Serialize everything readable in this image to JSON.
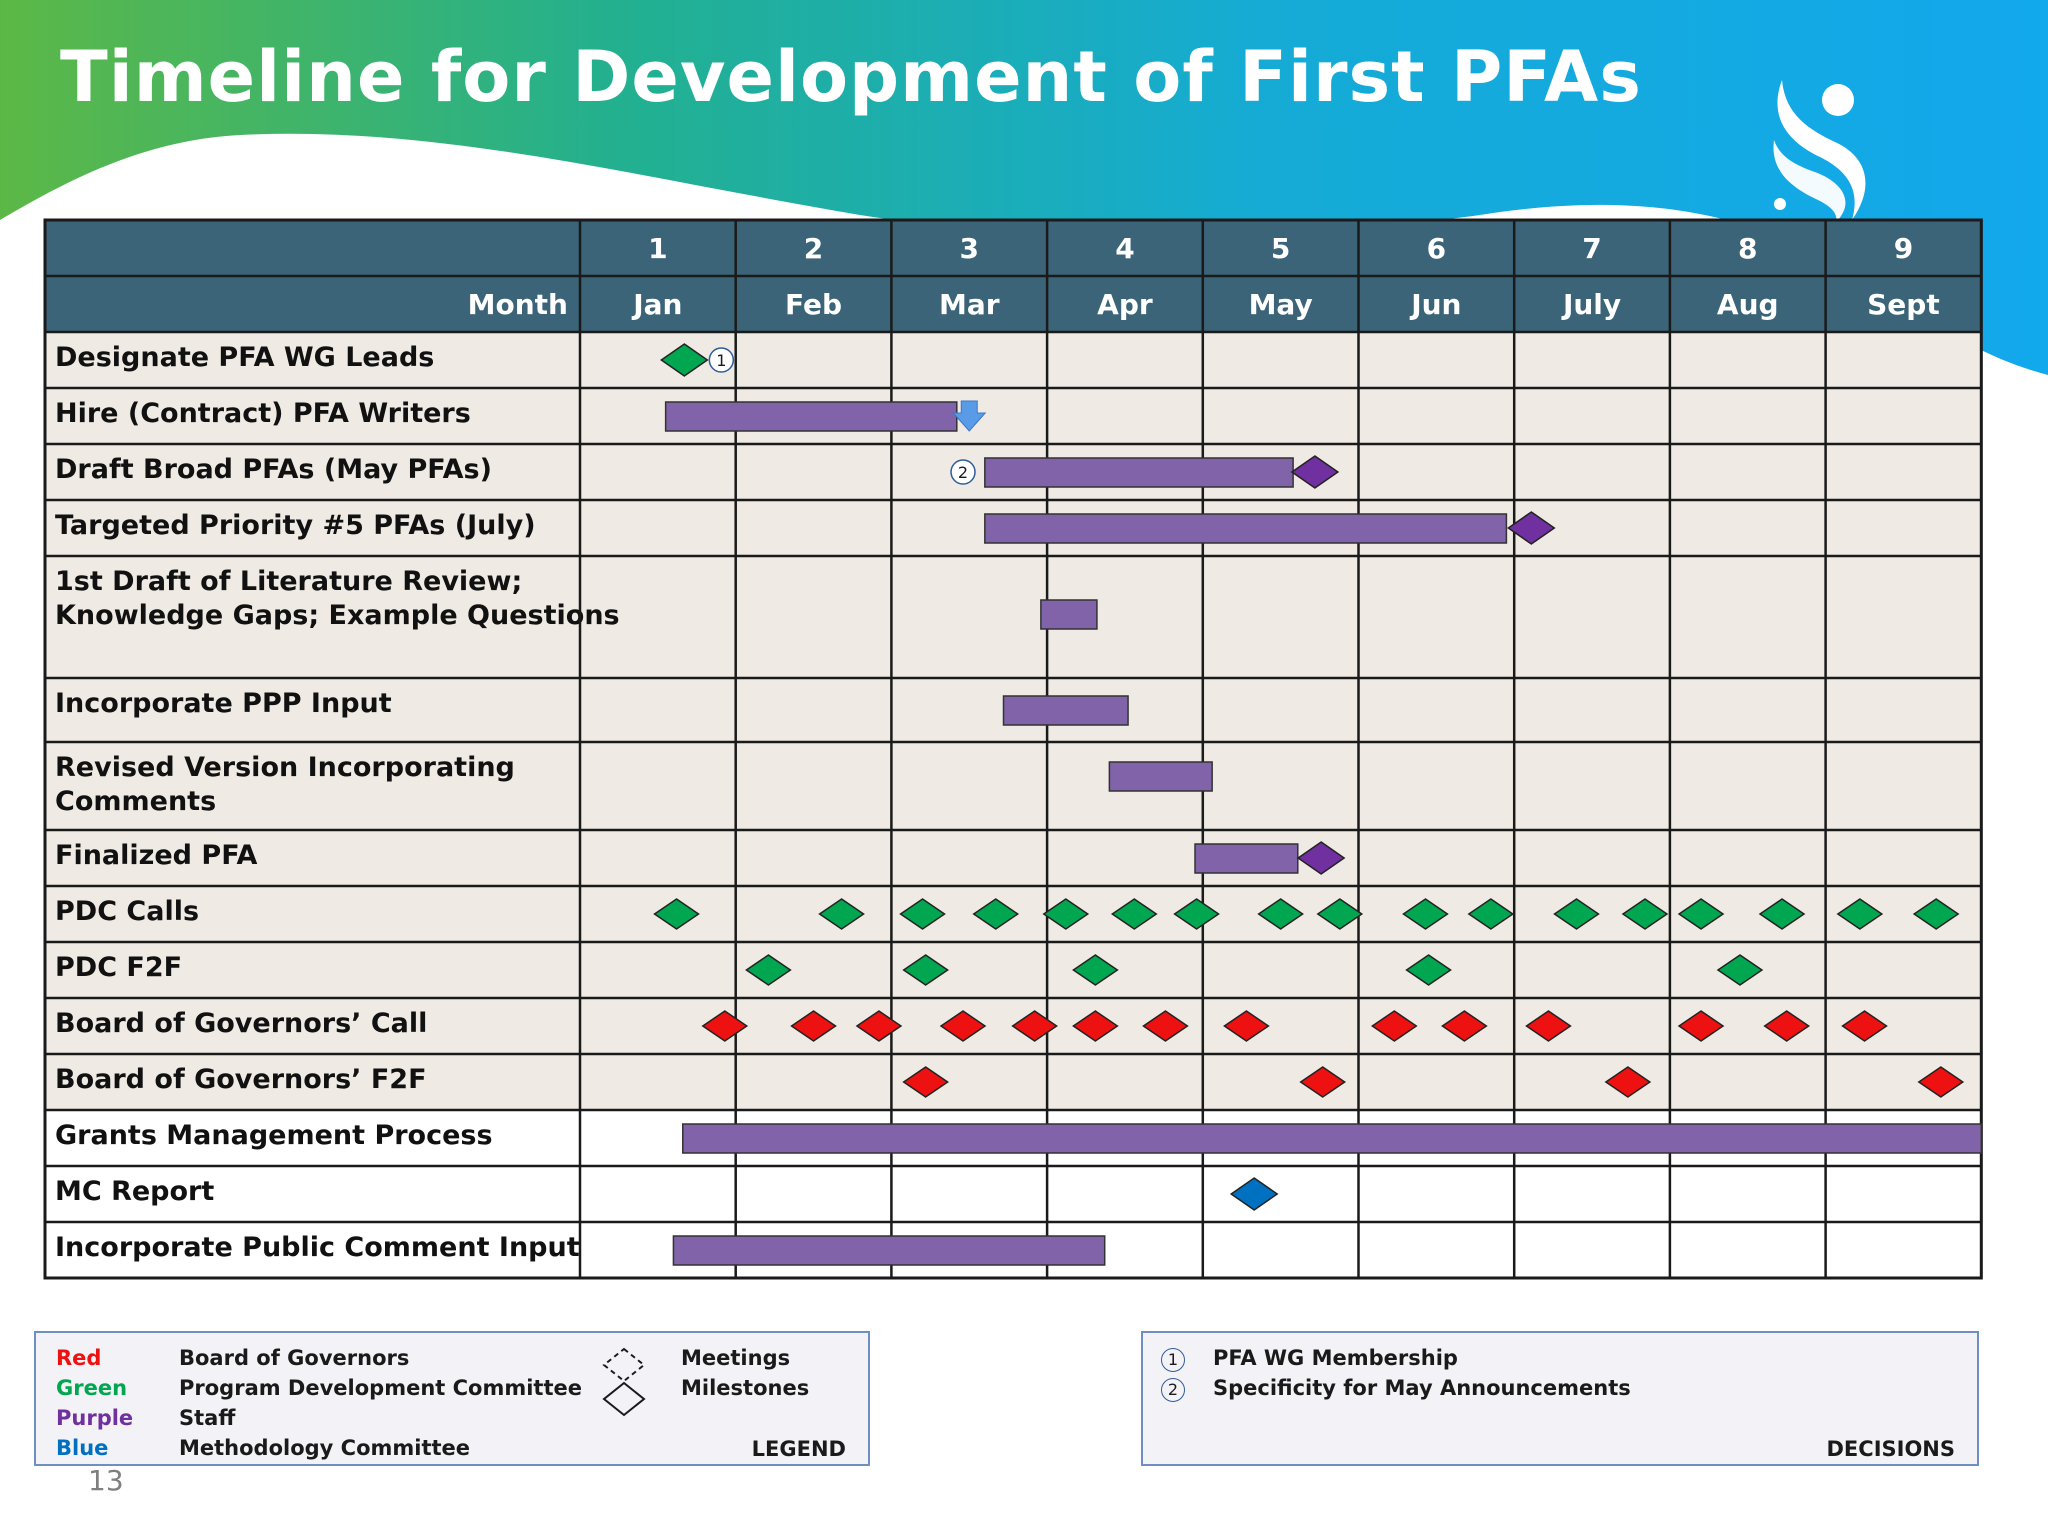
{
  "title": "Timeline for Development of First PFAs",
  "page_number": "13",
  "colors": {
    "header_bg": "#3b6478",
    "row_bg": "#efebe4",
    "bar_purple": "#8063a8",
    "milestone_purple": "#7030a0",
    "green": "#00a650",
    "red": "#ee1111",
    "blue": "#0070c0"
  },
  "chart_data": {
    "type": "gantt",
    "month_numbers": [
      "1",
      "2",
      "3",
      "4",
      "5",
      "6",
      "7",
      "8",
      "9"
    ],
    "month_label": "Month",
    "months": [
      "Jan",
      "Feb",
      "Mar",
      "Apr",
      "May",
      "Jun",
      "July",
      "Aug",
      "Sept"
    ],
    "rows": [
      {
        "label": "Designate PFA WG Leads",
        "milestones": [
          {
            "at": 0.67,
            "group": "green",
            "decision": "1"
          }
        ]
      },
      {
        "label": "Hire (Contract) PFA Writers",
        "bars": [
          {
            "start": 0.55,
            "end": 2.42
          }
        ],
        "arrow_at": 2.5
      },
      {
        "label": "Draft Broad PFAs (May PFAs)",
        "bars": [
          {
            "start": 2.6,
            "end": 4.58
          }
        ],
        "milestones": [
          {
            "at": 4.72,
            "group": "purple"
          }
        ],
        "decision_at": 2.46,
        "decision": "2"
      },
      {
        "label": "Targeted Priority #5 PFAs (July)",
        "bars": [
          {
            "start": 2.6,
            "end": 5.95
          }
        ],
        "milestones": [
          {
            "at": 6.11,
            "group": "purple"
          }
        ]
      },
      {
        "label": "1st Draft of Literature Review; Knowledge Gaps; Example Questions",
        "bars": [
          {
            "start": 2.96,
            "end": 3.32
          }
        ]
      },
      {
        "label": "Incorporate PPP Input",
        "bars": [
          {
            "start": 2.72,
            "end": 3.52
          }
        ]
      },
      {
        "label": "Revised Version Incorporating Comments",
        "bars": [
          {
            "start": 3.4,
            "end": 4.06
          }
        ]
      },
      {
        "label": "Finalized PFA",
        "bars": [
          {
            "start": 3.95,
            "end": 4.61
          }
        ],
        "milestones": [
          {
            "at": 4.76,
            "group": "purple"
          }
        ]
      },
      {
        "label": "PDC Calls",
        "milestones": [
          {
            "at": 0.62,
            "group": "green"
          },
          {
            "at": 1.68,
            "group": "green"
          },
          {
            "at": 2.2,
            "group": "green"
          },
          {
            "at": 2.67,
            "group": "green"
          },
          {
            "at": 3.12,
            "group": "green"
          },
          {
            "at": 3.56,
            "group": "green"
          },
          {
            "at": 3.96,
            "group": "green"
          },
          {
            "at": 4.5,
            "group": "green"
          },
          {
            "at": 4.88,
            "group": "green"
          },
          {
            "at": 5.43,
            "group": "green"
          },
          {
            "at": 5.85,
            "group": "green"
          },
          {
            "at": 6.4,
            "group": "green"
          },
          {
            "at": 6.84,
            "group": "green"
          },
          {
            "at": 7.2,
            "group": "green"
          },
          {
            "at": 7.72,
            "group": "green"
          },
          {
            "at": 8.22,
            "group": "green"
          },
          {
            "at": 8.71,
            "group": "green"
          }
        ]
      },
      {
        "label": "PDC F2F",
        "milestones": [
          {
            "at": 1.21,
            "group": "green"
          },
          {
            "at": 2.22,
            "group": "green"
          },
          {
            "at": 3.31,
            "group": "green"
          },
          {
            "at": 5.45,
            "group": "green"
          },
          {
            "at": 7.45,
            "group": "green"
          }
        ]
      },
      {
        "label": "Board of Governors’ Call",
        "milestones": [
          {
            "at": 0.93,
            "group": "red"
          },
          {
            "at": 1.5,
            "group": "red"
          },
          {
            "at": 1.92,
            "group": "red"
          },
          {
            "at": 2.46,
            "group": "red"
          },
          {
            "at": 2.92,
            "group": "red"
          },
          {
            "at": 3.31,
            "group": "red"
          },
          {
            "at": 3.76,
            "group": "red"
          },
          {
            "at": 4.28,
            "group": "red"
          },
          {
            "at": 5.23,
            "group": "red"
          },
          {
            "at": 5.68,
            "group": "red"
          },
          {
            "at": 6.22,
            "group": "red"
          },
          {
            "at": 7.2,
            "group": "red"
          },
          {
            "at": 7.75,
            "group": "red"
          },
          {
            "at": 8.25,
            "group": "red"
          }
        ]
      },
      {
        "label": "Board of Governors’ F2F",
        "milestones": [
          {
            "at": 2.22,
            "group": "red"
          },
          {
            "at": 4.77,
            "group": "red"
          },
          {
            "at": 6.73,
            "group": "red"
          },
          {
            "at": 8.74,
            "group": "red"
          }
        ]
      },
      {
        "label": "Grants Management Process",
        "bars": [
          {
            "start": 0.66,
            "end": 9.0
          }
        ],
        "white": true
      },
      {
        "label": "MC Report",
        "milestones": [
          {
            "at": 4.33,
            "group": "blue"
          }
        ],
        "white": true
      },
      {
        "label": "Incorporate Public Comment Input",
        "bars": [
          {
            "start": 0.6,
            "end": 3.37
          }
        ],
        "white": true
      }
    ]
  },
  "legend": {
    "colors": [
      {
        "color": "Red",
        "meaning": "Board of Governors"
      },
      {
        "color": "Green",
        "meaning": "Program Development Committee"
      },
      {
        "color": "Purple",
        "meaning": "Staff"
      },
      {
        "color": "Blue",
        "meaning": "Methodology Committee"
      }
    ],
    "shapes": [
      {
        "icon": "dashed-diamond",
        "label": "Meetings"
      },
      {
        "icon": "solid-diamond",
        "label": "Milestones"
      }
    ],
    "caption": "LEGEND"
  },
  "decisions": {
    "items": [
      {
        "number": "1",
        "label": "PFA WG Membership"
      },
      {
        "number": "2",
        "label": "Specificity for May Announcements"
      }
    ],
    "caption": "DECISIONS"
  }
}
